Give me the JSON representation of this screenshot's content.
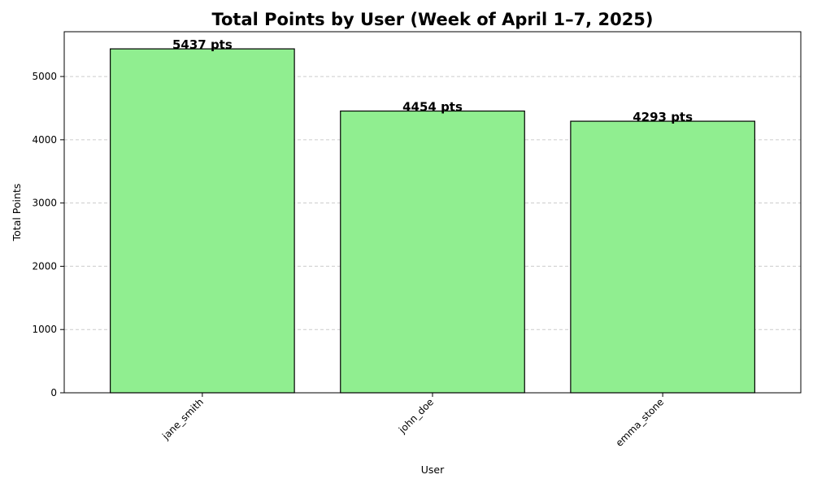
{
  "chart_data": {
    "type": "bar",
    "title": "Total Points by User (Week of April 1–7, 2025)",
    "xlabel": "User",
    "ylabel": "Total Points",
    "categories": [
      "jane_smith",
      "john_doe",
      "emma_stone"
    ],
    "values": [
      5437,
      4454,
      4293
    ],
    "data_labels": [
      "5437 pts",
      "4454 pts",
      "4293 pts"
    ],
    "ylim": [
      0,
      5708
    ],
    "yticks": [
      0,
      1000,
      2000,
      3000,
      4000,
      5000
    ],
    "grid": true,
    "bar_color": "#90ee90",
    "edge_color": "#000000"
  }
}
